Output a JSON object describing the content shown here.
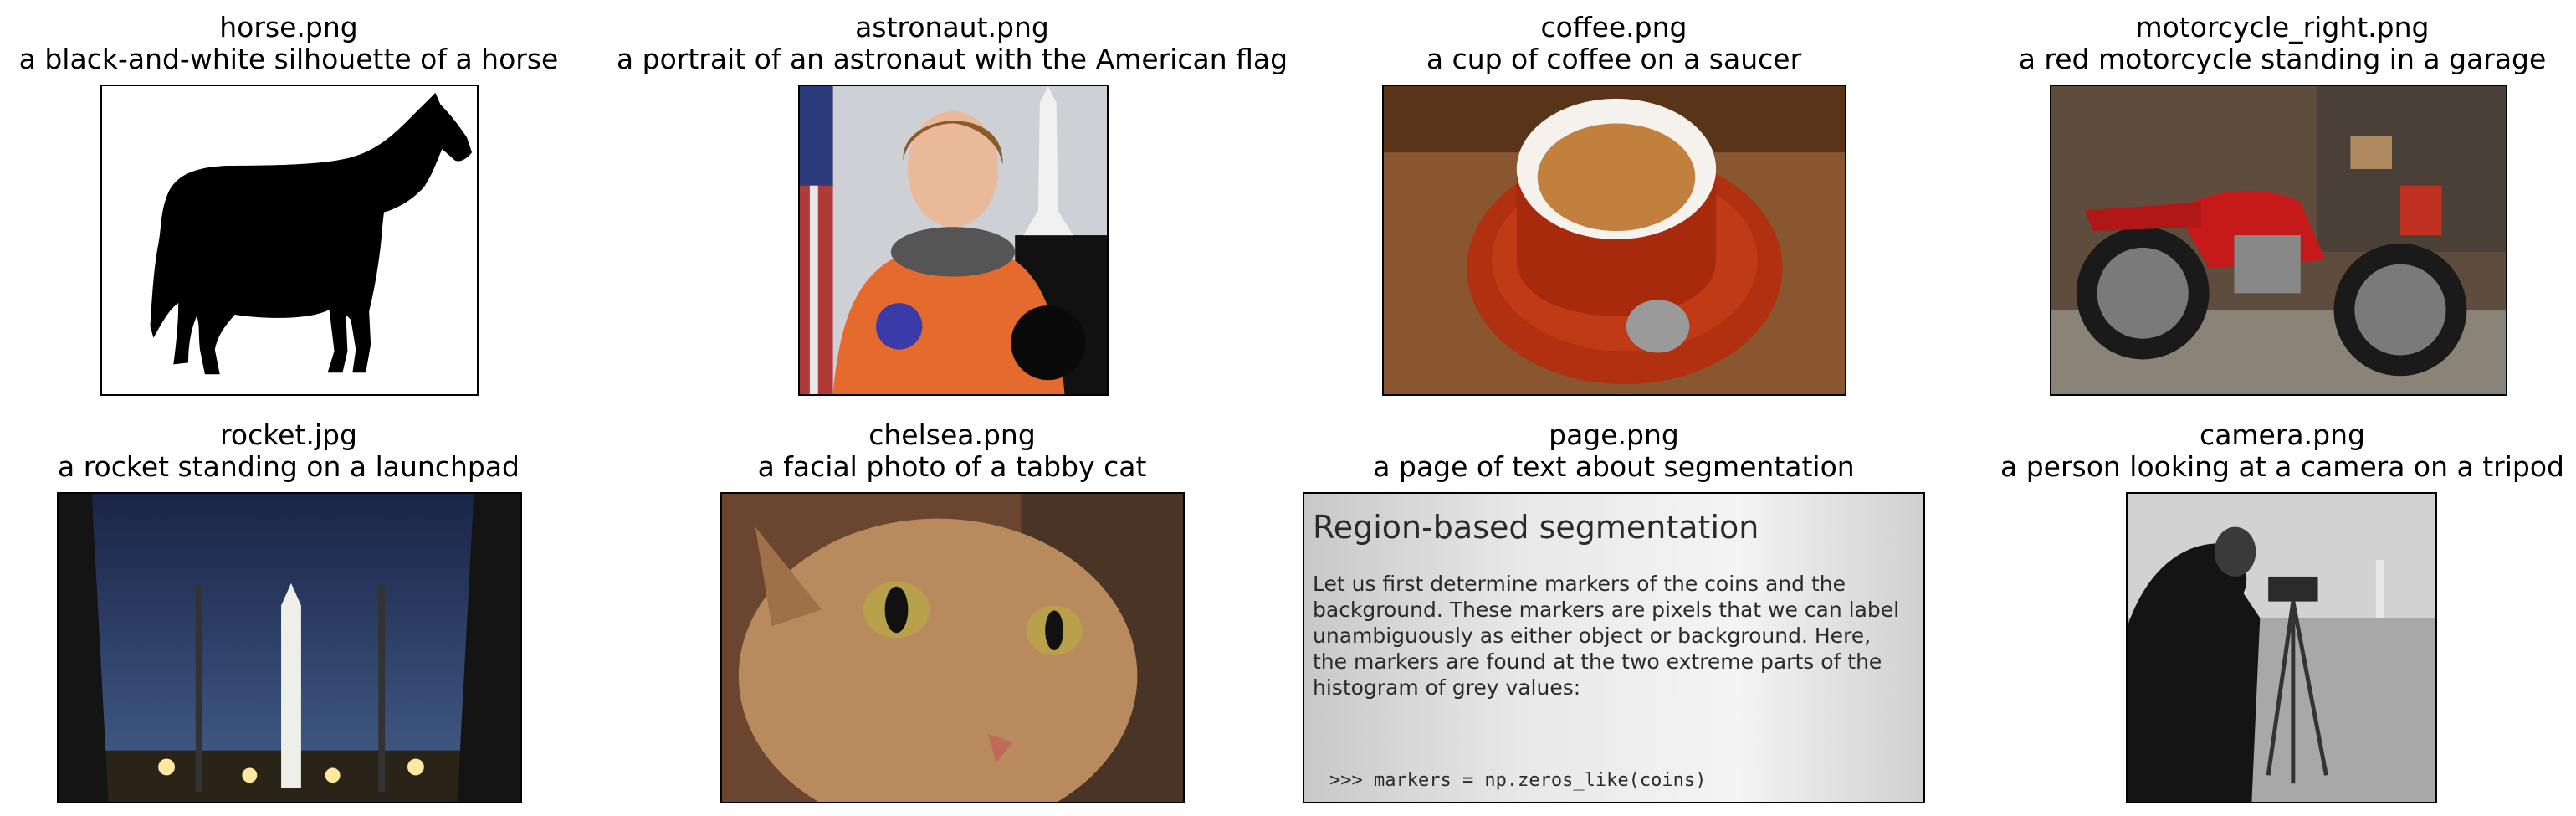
{
  "figures": [
    {
      "filename": "horse.png",
      "caption": "a black-and-white silhouette of a horse"
    },
    {
      "filename": "astronaut.png",
      "caption": "a portrait of an astronaut with the American flag"
    },
    {
      "filename": "coffee.png",
      "caption": "a cup of coffee on a saucer"
    },
    {
      "filename": "motorcycle_right.png",
      "caption": "a red motorcycle standing in a garage"
    },
    {
      "filename": "rocket.jpg",
      "caption": "a rocket standing on a launchpad"
    },
    {
      "filename": "chelsea.png",
      "caption": "a facial photo of a tabby cat"
    },
    {
      "filename": "page.png",
      "caption": "a page of text about segmentation",
      "page_text": {
        "heading": "Region-based segmentation",
        "lines": [
          "Let us first determine markers of the coins and the",
          "background. These markers are pixels that we can label",
          "unambiguously as either object or background. Here,",
          "the markers are found at the two extreme parts of the",
          "histogram of grey values:"
        ],
        "code": ">>> markers = np.zeros_like(coins)"
      }
    },
    {
      "filename": "camera.png",
      "caption": "a person looking at a camera on a tripod"
    }
  ]
}
